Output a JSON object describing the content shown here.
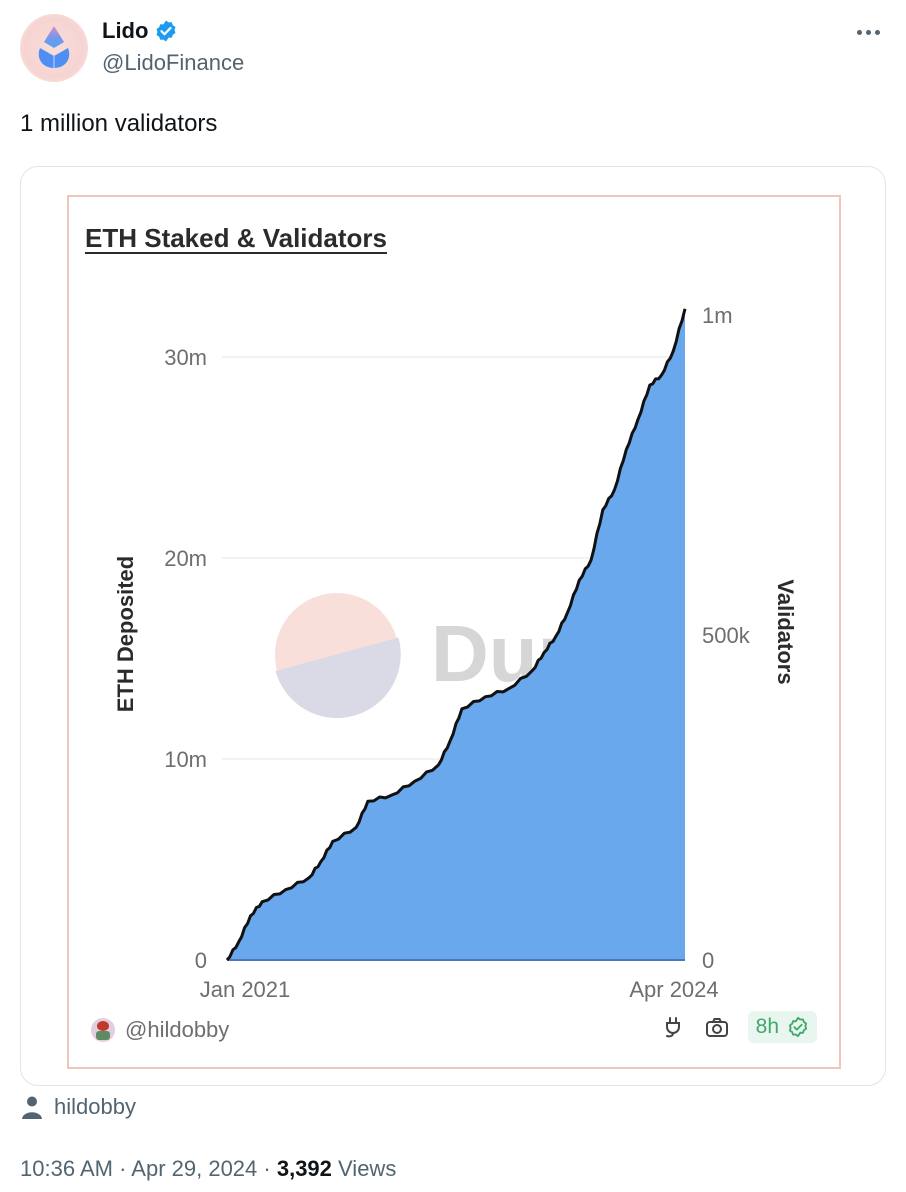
{
  "tweet": {
    "author": {
      "name": "Lido",
      "handle": "@LidoFinance",
      "verified": true,
      "avatar_icon": "lido-logo-icon"
    },
    "more_button_icon": "more-horizontal-icon",
    "text": "1 million validators",
    "media": {
      "chart_title": "ETH Staked & Validators",
      "watermark": "Dune",
      "chart_author": "@hildobby",
      "tools": {
        "embed_icon": "plug-icon",
        "screenshot_icon": "camera-icon",
        "freshness_label": "8h",
        "freshness_icon": "check-badge-icon"
      }
    },
    "attribution": {
      "icon": "person-icon",
      "name": "hildobby"
    },
    "meta": {
      "time": "10:36 AM",
      "separator": " · ",
      "date": "Apr 29, 2024",
      "views_count": "3,392",
      "views_label": "Views"
    }
  },
  "colors": {
    "area_fill": "#6aa8ee",
    "line": "#111111",
    "frame_border": "#efc6bb",
    "verified_blue": "#1d9bf0",
    "fresh_green": "#3fa86a"
  },
  "chart_data": {
    "type": "area",
    "title": "ETH Staked & Validators",
    "xlabel": "",
    "ylabel": "ETH Deposited",
    "ylabel_right": "Validators",
    "x_tick_labels": [
      "Jan 2021",
      "Apr 2024"
    ],
    "y_tick_labels": [
      "0",
      "10m",
      "20m",
      "30m"
    ],
    "y_right_tick_labels": [
      "0",
      "500k",
      "1m"
    ],
    "ylim": [
      0,
      32
    ],
    "ylim_right": [
      0,
      1000000
    ],
    "grid": true,
    "legend": "none",
    "x": [
      "2021-01",
      "2021-02",
      "2021-03",
      "2021-04",
      "2021-06",
      "2021-08",
      "2021-09",
      "2021-10",
      "2021-12",
      "2022-01",
      "2022-03",
      "2022-05",
      "2022-07",
      "2022-08",
      "2022-09",
      "2022-11",
      "2023-01",
      "2023-03",
      "2023-04",
      "2023-05",
      "2023-06",
      "2023-07",
      "2023-08",
      "2023-09",
      "2023-10",
      "2023-11",
      "2023-12",
      "2024-01",
      "2024-02",
      "2024-03",
      "2024-04"
    ],
    "series": [
      {
        "name": "ETH Deposited (m)",
        "values": [
          0.0,
          0.9,
          2.2,
          2.9,
          3.5,
          4.1,
          4.9,
          5.9,
          6.6,
          7.9,
          8.2,
          8.9,
          9.7,
          10.9,
          12.5,
          13.1,
          13.5,
          14.4,
          15.3,
          16.1,
          17.3,
          18.9,
          19.9,
          22.4,
          23.4,
          25.4,
          26.9,
          28.6,
          29.1,
          30.3,
          32.4
        ]
      }
    ]
  }
}
